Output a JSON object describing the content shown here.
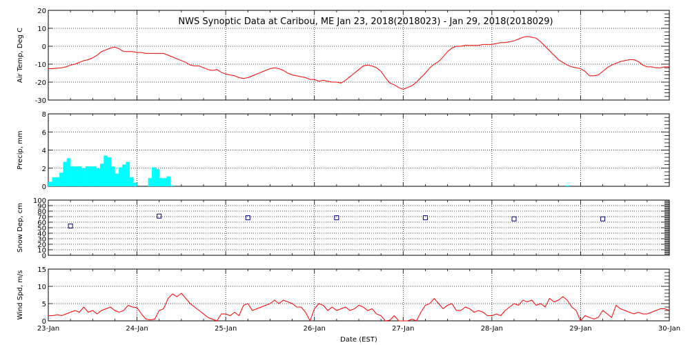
{
  "title": "NWS Synoptic Data at Caribou, ME   Jan 23, 2018(2018023) - Jan 29, 2018(2018029)",
  "xlabel": "Date (EST)",
  "x_tick_labels": [
    "23-Jan",
    "24-Jan",
    "25-Jan",
    "26-Jan",
    "27-Jan",
    "28-Jan",
    "29-Jan",
    "30-Jan"
  ],
  "colors": {
    "air_temp": "#ff0000",
    "precip": "#00ffff",
    "snow": "#000080",
    "wind": "#ff0000",
    "grid": "#000000"
  },
  "chart_data": [
    {
      "type": "line",
      "name": "air_temp",
      "ylabel": "Air Temp, Deg C",
      "ylim": [
        -30,
        20
      ],
      "yticks": [
        -30,
        -20,
        -10,
        0,
        10,
        20
      ],
      "x_unit": "days since 23-Jan 00:00",
      "x": [
        0,
        0.05,
        0.1,
        0.15,
        0.2,
        0.25,
        0.3,
        0.35,
        0.4,
        0.45,
        0.5,
        0.55,
        0.6,
        0.65,
        0.7,
        0.75,
        0.8,
        0.85,
        0.9,
        0.95,
        1.0,
        1.05,
        1.1,
        1.15,
        1.2,
        1.25,
        1.3,
        1.35,
        1.4,
        1.45,
        1.5,
        1.55,
        1.6,
        1.65,
        1.7,
        1.75,
        1.8,
        1.85,
        1.9,
        1.95,
        2.0,
        2.05,
        2.1,
        2.15,
        2.2,
        2.25,
        2.3,
        2.35,
        2.4,
        2.45,
        2.5,
        2.55,
        2.6,
        2.65,
        2.7,
        2.75,
        2.8,
        2.85,
        2.9,
        2.95,
        3.0,
        3.05,
        3.1,
        3.15,
        3.2,
        3.25,
        3.3,
        3.35,
        3.4,
        3.45,
        3.5,
        3.55,
        3.6,
        3.65,
        3.7,
        3.75,
        3.8,
        3.85,
        3.9,
        3.95,
        4.0,
        4.05,
        4.1,
        4.15,
        4.2,
        4.25,
        4.3,
        4.35,
        4.4,
        4.45,
        4.5,
        4.55,
        4.6,
        4.65,
        4.7,
        4.75,
        4.8,
        4.85,
        4.9,
        4.95,
        5.0,
        5.05,
        5.1,
        5.15,
        5.2,
        5.25,
        5.3,
        5.35,
        5.4,
        5.45,
        5.5,
        5.55,
        5.6,
        5.65,
        5.7,
        5.75,
        5.8,
        5.85,
        5.9,
        5.95,
        6.0,
        6.05,
        6.1,
        6.15,
        6.2,
        6.25,
        6.3,
        6.35,
        6.4,
        6.45,
        6.5,
        6.55,
        6.6,
        6.65,
        6.7,
        6.75,
        6.8,
        6.85,
        6.9,
        6.95,
        7.0
      ],
      "y": [
        -12.5,
        -12.5,
        -12.2,
        -12,
        -11.5,
        -10.5,
        -10,
        -9,
        -8,
        -7.5,
        -6.5,
        -5,
        -3,
        -2,
        -1,
        -0.5,
        -1.5,
        -3,
        -3,
        -3,
        -3.5,
        -3.5,
        -4,
        -4,
        -4,
        -4,
        -4,
        -5,
        -6,
        -7,
        -8,
        -9,
        -10.5,
        -11,
        -11,
        -12,
        -13,
        -13.5,
        -13,
        -14.5,
        -15.5,
        -16,
        -16.5,
        -17.5,
        -18,
        -17.5,
        -16.5,
        -15.5,
        -14.5,
        -13.5,
        -12.5,
        -12,
        -12.5,
        -13.5,
        -15,
        -16,
        -16.5,
        -17,
        -17.5,
        -18.5,
        -18.5,
        -19.5,
        -19,
        -19.5,
        -20,
        -20,
        -20.5,
        -19,
        -17,
        -15,
        -13,
        -11,
        -10.5,
        -11,
        -12,
        -14,
        -17.5,
        -20.5,
        -21.5,
        -23,
        -24,
        -23,
        -22,
        -20,
        -17.5,
        -15,
        -12,
        -10,
        -8.5,
        -6,
        -3,
        -1,
        0,
        0,
        0.5,
        0.5,
        0.5,
        0.5,
        1,
        1,
        1,
        1.5,
        2,
        2,
        2.5,
        3,
        4,
        5,
        5.5,
        5,
        4.5,
        2.5,
        0,
        -2.5,
        -5,
        -7.5,
        -9,
        -10.5,
        -11.5,
        -12,
        -12.5,
        -14,
        -16.5,
        -16.5,
        -16,
        -14,
        -12,
        -10.5,
        -9.5,
        -8.5,
        -8,
        -7.5,
        -7.5,
        -8.5,
        -10.5,
        -11.5,
        -11.5,
        -12,
        -12,
        -11.5,
        -11.5
      ]
    },
    {
      "type": "bar",
      "name": "precip",
      "ylabel": "Precip, mm",
      "ylim": [
        0,
        8
      ],
      "yticks": [
        0,
        2,
        4,
        6,
        8
      ],
      "x_unit": "days since 23-Jan 00:00",
      "bar_width_days": 0.0417,
      "x": [
        0.0,
        0.042,
        0.083,
        0.125,
        0.167,
        0.208,
        0.25,
        0.292,
        0.333,
        0.375,
        0.417,
        0.458,
        0.5,
        0.542,
        0.583,
        0.625,
        0.667,
        0.708,
        0.75,
        0.792,
        0.833,
        0.875,
        0.917,
        0.958,
        1.0,
        1.042,
        1.083,
        1.125,
        1.167,
        1.208,
        1.25,
        1.292,
        1.333,
        1.375,
        5.833
      ],
      "values": [
        0.5,
        1,
        1,
        1.5,
        2.7,
        3.1,
        2.2,
        2.2,
        2.2,
        2,
        2.2,
        2.2,
        2.2,
        2,
        2.5,
        3.4,
        3.2,
        2.2,
        1.4,
        2.1,
        2.4,
        2.7,
        1,
        0.4,
        0,
        0,
        0,
        0.9,
        2.1,
        1.9,
        0.9,
        0.9,
        1.1,
        0.1,
        0.1
      ]
    },
    {
      "type": "scatter",
      "name": "snow_depth",
      "ylabel": "Snow Dep, cm",
      "ylim": [
        0,
        100
      ],
      "yticks": [
        0,
        10,
        20,
        30,
        40,
        50,
        60,
        70,
        80,
        90,
        100
      ],
      "x_unit": "days since 23-Jan 00:00",
      "x": [
        0.25,
        1.25,
        2.25,
        3.25,
        4.25,
        5.25,
        6.25
      ],
      "y": [
        53,
        71,
        68,
        68,
        68,
        66,
        66
      ]
    },
    {
      "type": "line",
      "name": "wind_speed",
      "ylabel": "Wind Spd, m/s",
      "ylim": [
        0,
        15
      ],
      "yticks": [
        0,
        5,
        10,
        15
      ],
      "x_unit": "days since 23-Jan 00:00",
      "x": [
        0,
        0.05,
        0.1,
        0.15,
        0.2,
        0.25,
        0.3,
        0.35,
        0.4,
        0.45,
        0.5,
        0.55,
        0.6,
        0.65,
        0.7,
        0.75,
        0.8,
        0.85,
        0.9,
        0.95,
        1.0,
        1.05,
        1.1,
        1.15,
        1.2,
        1.25,
        1.3,
        1.35,
        1.4,
        1.45,
        1.5,
        1.55,
        1.6,
        1.65,
        1.7,
        1.75,
        1.8,
        1.85,
        1.9,
        1.95,
        2.0,
        2.05,
        2.1,
        2.15,
        2.2,
        2.25,
        2.3,
        2.35,
        2.4,
        2.45,
        2.5,
        2.55,
        2.6,
        2.65,
        2.7,
        2.75,
        2.8,
        2.85,
        2.9,
        2.95,
        3.0,
        3.05,
        3.1,
        3.15,
        3.2,
        3.25,
        3.3,
        3.35,
        3.4,
        3.45,
        3.5,
        3.55,
        3.6,
        3.65,
        3.7,
        3.75,
        3.8,
        3.85,
        3.9,
        3.95,
        4.0,
        4.05,
        4.1,
        4.15,
        4.2,
        4.25,
        4.3,
        4.35,
        4.4,
        4.45,
        4.5,
        4.55,
        4.6,
        4.65,
        4.7,
        4.75,
        4.8,
        4.85,
        4.9,
        4.95,
        5.0,
        5.05,
        5.1,
        5.15,
        5.2,
        5.25,
        5.3,
        5.35,
        5.4,
        5.45,
        5.5,
        5.55,
        5.6,
        5.65,
        5.7,
        5.75,
        5.8,
        5.85,
        5.9,
        5.95,
        6.0,
        6.05,
        6.1,
        6.15,
        6.2,
        6.25,
        6.3,
        6.35,
        6.4,
        6.45,
        6.5,
        6.55,
        6.6,
        6.65,
        6.7,
        6.75,
        6.8,
        6.85,
        6.9,
        6.95,
        7.0
      ],
      "y": [
        1.5,
        1.5,
        1.8,
        1.5,
        2,
        2.5,
        3,
        2.5,
        4,
        2.5,
        3,
        2,
        3,
        3.5,
        4,
        3,
        2.5,
        3,
        4.5,
        4,
        3.8,
        2,
        0.5,
        0.3,
        0.5,
        3,
        3.5,
        6.5,
        7.8,
        7,
        8,
        6.5,
        5,
        4,
        3,
        2,
        1,
        0.5,
        0,
        2,
        2,
        1.5,
        2.5,
        1.5,
        4.5,
        5,
        3,
        3.5,
        4,
        4.5,
        5,
        6,
        5,
        6,
        5.5,
        5,
        4,
        4,
        2.5,
        0,
        3.5,
        5,
        4.5,
        3,
        4,
        3,
        3.5,
        4,
        3,
        3.5,
        4.5,
        4,
        3,
        3.5,
        2,
        1.5,
        0,
        0.2,
        1.5,
        0,
        0,
        0,
        0.5,
        0,
        2.5,
        4.5,
        5,
        6.5,
        5,
        3.5,
        4.5,
        5,
        3,
        3,
        4,
        3.5,
        2.5,
        3,
        2.5,
        1.5,
        1.5,
        2,
        1.5,
        3,
        4,
        5,
        4.5,
        6,
        5.5,
        6,
        4.5,
        5,
        4,
        6.5,
        5.5,
        6,
        7,
        6,
        4,
        3,
        0,
        1.5,
        1,
        0.5,
        1,
        3,
        2,
        1,
        4.5,
        3.5,
        3,
        2.5,
        2,
        2.5,
        2,
        2,
        2.5,
        3,
        3.5,
        3.5,
        3
      ]
    }
  ]
}
